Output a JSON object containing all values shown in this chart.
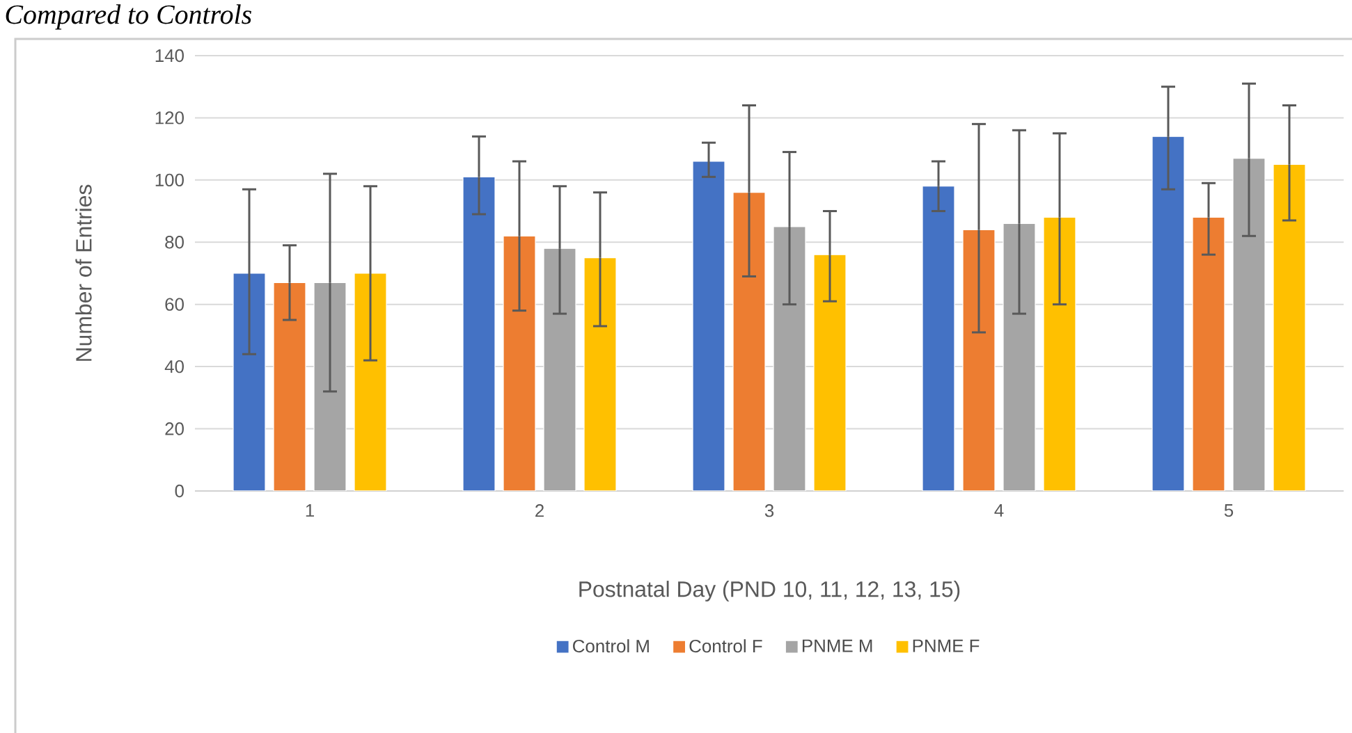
{
  "chart_data": {
    "type": "bar",
    "title": "Compared to Controls",
    "xlabel": "Postnatal Day (PND 10, 11, 12, 13, 15)",
    "ylabel": "Number of Entries",
    "categories": [
      "1",
      "2",
      "3",
      "4",
      "5"
    ],
    "series": [
      {
        "name": "Control M",
        "color": "#4472c4",
        "values": [
          70,
          101,
          106,
          98,
          114
        ],
        "errors": [
          [
            44,
            97
          ],
          [
            89,
            114
          ],
          [
            101,
            112
          ],
          [
            90,
            106
          ],
          [
            97,
            130
          ]
        ]
      },
      {
        "name": "Control F",
        "color": "#ed7d31",
        "values": [
          67,
          82,
          96,
          84,
          88
        ],
        "errors": [
          [
            55,
            79
          ],
          [
            58,
            106
          ],
          [
            69,
            124
          ],
          [
            51,
            118
          ],
          [
            76,
            99
          ]
        ]
      },
      {
        "name": "PNME M",
        "color": "#a5a5a5",
        "values": [
          67,
          78,
          85,
          86,
          107
        ],
        "errors": [
          [
            32,
            102
          ],
          [
            57,
            98
          ],
          [
            60,
            109
          ],
          [
            57,
            116
          ],
          [
            82,
            131
          ]
        ]
      },
      {
        "name": "PNME F",
        "color": "#ffc000",
        "values": [
          70,
          75,
          76,
          88,
          105
        ],
        "errors": [
          [
            42,
            98
          ],
          [
            53,
            96
          ],
          [
            61,
            90
          ],
          [
            60,
            115
          ],
          [
            87,
            124
          ]
        ]
      }
    ],
    "ylim": [
      0,
      140
    ],
    "yticks": [
      0,
      20,
      40,
      60,
      80,
      100,
      120,
      140
    ],
    "grid": "y",
    "legend": "bottom"
  }
}
